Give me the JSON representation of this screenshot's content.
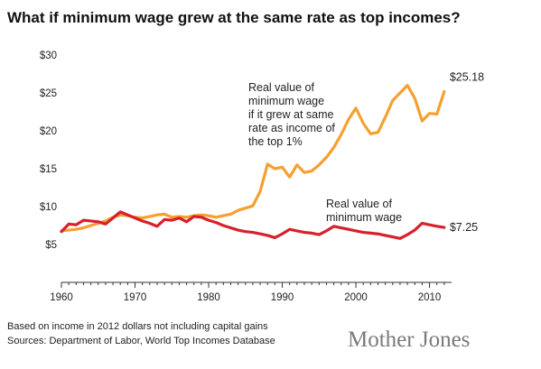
{
  "chart_data": {
    "type": "line",
    "title": "What if minimum wage grew at the same rate as top incomes?",
    "xlabel": "",
    "ylabel": "",
    "xlim": [
      1960,
      2013
    ],
    "ylim": [
      0,
      30
    ],
    "x_ticks": [
      "1960",
      "1970",
      "1980",
      "1990",
      "2000",
      "2010"
    ],
    "y_ticks": [
      "$30",
      "$25",
      "$20",
      "$15",
      "$10",
      "$5"
    ],
    "grid": false,
    "series": [
      {
        "annotation": [
          "Real value of",
          "minimum wage",
          "if it grew at same",
          "rate as income of",
          "the top 1%"
        ],
        "end_label": "$25.18",
        "color": "#f5a030",
        "points": [
          [
            1960,
            6.8
          ],
          [
            1961,
            6.9
          ],
          [
            1962,
            7.0
          ],
          [
            1963,
            7.2
          ],
          [
            1964,
            7.5
          ],
          [
            1965,
            7.8
          ],
          [
            1966,
            8.1
          ],
          [
            1967,
            8.6
          ],
          [
            1968,
            8.9
          ],
          [
            1969,
            8.8
          ],
          [
            1970,
            8.6
          ],
          [
            1971,
            8.5
          ],
          [
            1972,
            8.7
          ],
          [
            1973,
            8.9
          ],
          [
            1974,
            9.0
          ],
          [
            1975,
            8.6
          ],
          [
            1976,
            8.7
          ],
          [
            1977,
            8.6
          ],
          [
            1978,
            8.8
          ],
          [
            1979,
            8.9
          ],
          [
            1980,
            8.8
          ],
          [
            1981,
            8.6
          ],
          [
            1982,
            8.8
          ],
          [
            1983,
            9.0
          ],
          [
            1984,
            9.5
          ],
          [
            1985,
            9.8
          ],
          [
            1986,
            10.1
          ],
          [
            1987,
            12.0
          ],
          [
            1988,
            15.6
          ],
          [
            1989,
            15.0
          ],
          [
            1990,
            15.2
          ],
          [
            1991,
            13.9
          ],
          [
            1992,
            15.5
          ],
          [
            1993,
            14.5
          ],
          [
            1994,
            14.7
          ],
          [
            1995,
            15.5
          ],
          [
            1996,
            16.5
          ],
          [
            1997,
            17.8
          ],
          [
            1998,
            19.5
          ],
          [
            1999,
            21.5
          ],
          [
            2000,
            23.0
          ],
          [
            2001,
            21.0
          ],
          [
            2002,
            19.6
          ],
          [
            2003,
            19.8
          ],
          [
            2004,
            21.8
          ],
          [
            2005,
            24.0
          ],
          [
            2006,
            25.0
          ],
          [
            2007,
            26.0
          ],
          [
            2008,
            24.3
          ],
          [
            2009,
            21.3
          ],
          [
            2010,
            22.3
          ],
          [
            2011,
            22.2
          ],
          [
            2012,
            25.18
          ]
        ]
      },
      {
        "annotation": [
          "Real value of",
          "minimum wage"
        ],
        "end_label": "$7.25",
        "color": "#d8202a",
        "points": [
          [
            1960,
            6.7
          ],
          [
            1961,
            7.7
          ],
          [
            1962,
            7.6
          ],
          [
            1963,
            8.2
          ],
          [
            1964,
            8.1
          ],
          [
            1965,
            8.0
          ],
          [
            1966,
            7.7
          ],
          [
            1967,
            8.5
          ],
          [
            1968,
            9.3
          ],
          [
            1969,
            8.9
          ],
          [
            1970,
            8.5
          ],
          [
            1971,
            8.1
          ],
          [
            1972,
            7.8
          ],
          [
            1973,
            7.4
          ],
          [
            1974,
            8.3
          ],
          [
            1975,
            8.2
          ],
          [
            1976,
            8.5
          ],
          [
            1977,
            8.0
          ],
          [
            1978,
            8.7
          ],
          [
            1979,
            8.6
          ],
          [
            1980,
            8.2
          ],
          [
            1981,
            7.9
          ],
          [
            1982,
            7.5
          ],
          [
            1983,
            7.2
          ],
          [
            1984,
            6.9
          ],
          [
            1985,
            6.7
          ],
          [
            1986,
            6.6
          ],
          [
            1987,
            6.4
          ],
          [
            1988,
            6.2
          ],
          [
            1989,
            5.9
          ],
          [
            1990,
            6.4
          ],
          [
            1991,
            7.0
          ],
          [
            1992,
            6.8
          ],
          [
            1993,
            6.6
          ],
          [
            1994,
            6.5
          ],
          [
            1995,
            6.3
          ],
          [
            1996,
            6.8
          ],
          [
            1997,
            7.4
          ],
          [
            1998,
            7.2
          ],
          [
            1999,
            7.0
          ],
          [
            2000,
            6.8
          ],
          [
            2001,
            6.6
          ],
          [
            2002,
            6.5
          ],
          [
            2003,
            6.4
          ],
          [
            2004,
            6.2
          ],
          [
            2005,
            6.0
          ],
          [
            2006,
            5.8
          ],
          [
            2007,
            6.3
          ],
          [
            2008,
            6.9
          ],
          [
            2009,
            7.8
          ],
          [
            2010,
            7.6
          ],
          [
            2011,
            7.4
          ],
          [
            2012,
            7.25
          ]
        ]
      }
    ]
  },
  "footnote": {
    "line1": "Based on income in 2012 dollars not including capital gains",
    "line2": "Sources: Department of Labor, World Top Incomes Database"
  },
  "logo": "Mother Jones"
}
